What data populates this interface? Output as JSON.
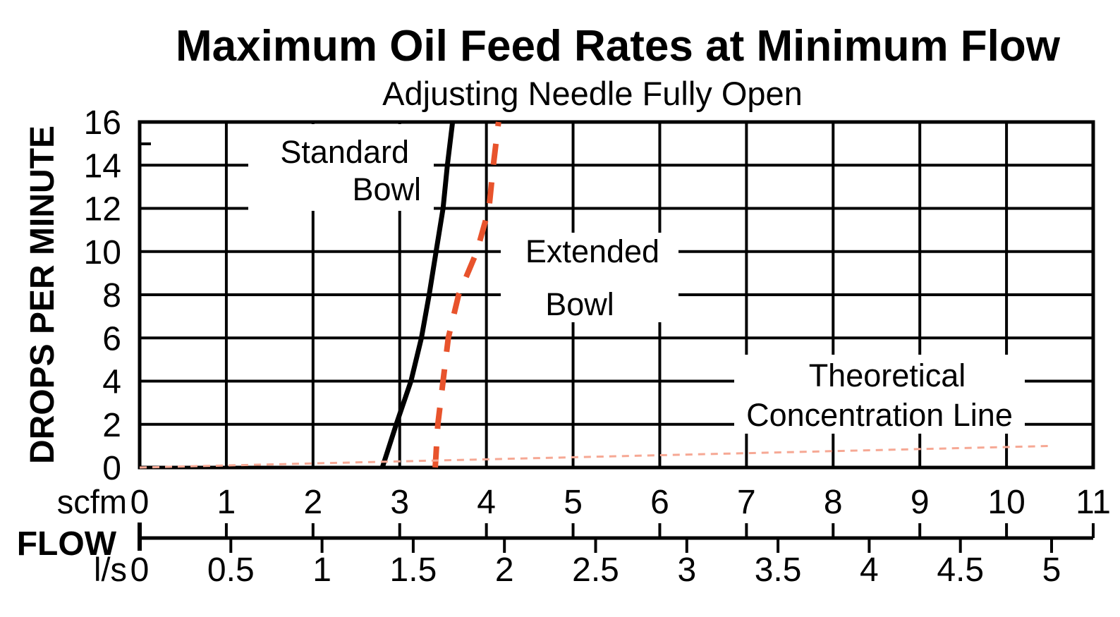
{
  "title": "Maximum Oil Feed Rates at Minimum Flow",
  "subtitle": "Adjusting Needle Fully Open",
  "y_axis": {
    "label": "DROPS PER MINUTE",
    "ticks": [
      "0",
      "2",
      "4",
      "6",
      "8",
      "10",
      "12",
      "14",
      "16"
    ]
  },
  "x_axis": {
    "scfm_unit_label": "scfm",
    "flow_label": "FLOW",
    "ls_unit_label": "l/s",
    "scfm_ticks": [
      "0",
      "1",
      "2",
      "3",
      "4",
      "5",
      "6",
      "7",
      "8",
      "9",
      "10",
      "11"
    ],
    "ls_ticks": [
      "0",
      "0.5",
      "1",
      "1.5",
      "2",
      "2.5",
      "3",
      "3.5",
      "4",
      "4.5",
      "5"
    ]
  },
  "annotations": {
    "standard_bowl": {
      "line1": "Standard",
      "line2": "Bowl"
    },
    "extended_bowl": {
      "line1": "Extended",
      "line2": "Bowl"
    },
    "theoretical": {
      "line1": "Theoretical",
      "line2": "Concentration Line"
    }
  },
  "colors": {
    "ink": "#000000",
    "extended_bowl_dash": "#E8532C",
    "theoretical_line": "#F6A894",
    "background": "#FFFFFF"
  },
  "chart_data": {
    "type": "line",
    "title": "Maximum Oil Feed Rates at Minimum Flow",
    "subtitle": "Adjusting Needle Fully Open",
    "xlabel": "FLOW (top scale scfm 0-11, bottom scale l/s 0-5)",
    "ylabel": "DROPS PER MINUTE",
    "xlim_scfm": [
      0,
      11
    ],
    "xlim_ls": [
      0,
      5
    ],
    "ylim": [
      0,
      16
    ],
    "grid": "on",
    "x_gridline_step_scfm": 1,
    "y_gridline_step": 2,
    "legend_position": "inline-labels",
    "series": [
      {
        "name": "Standard Bowl",
        "style": "solid",
        "color": "#000000",
        "points_scfm_vs_drops": [
          [
            2.8,
            0
          ],
          [
            2.96,
            2
          ],
          [
            3.13,
            4
          ],
          [
            3.25,
            6
          ],
          [
            3.34,
            8
          ],
          [
            3.42,
            10
          ],
          [
            3.5,
            12
          ],
          [
            3.55,
            14
          ],
          [
            3.61,
            16
          ]
        ]
      },
      {
        "name": "Extended Bowl",
        "style": "dashed",
        "color": "#E8532C",
        "points_scfm_vs_drops": [
          [
            3.41,
            0
          ],
          [
            3.44,
            2
          ],
          [
            3.5,
            4
          ],
          [
            3.56,
            6
          ],
          [
            3.68,
            8
          ],
          [
            3.89,
            10
          ],
          [
            4.03,
            12
          ],
          [
            4.08,
            14
          ],
          [
            4.14,
            16
          ]
        ]
      },
      {
        "name": "Theoretical Concentration Line",
        "style": "dotted",
        "color": "#F6A894",
        "points_scfm_vs_drops": [
          [
            0,
            0
          ],
          [
            10.53,
            1.0
          ]
        ]
      }
    ]
  }
}
